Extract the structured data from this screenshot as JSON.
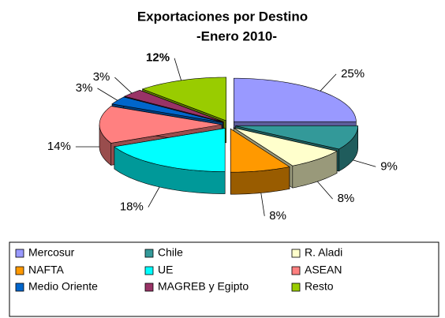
{
  "chart_data": {
    "type": "pie",
    "title": "Exportaciones por Destino",
    "subtitle": "-Enero 2010-",
    "categories": [
      "Mercosur",
      "Chile",
      "R. Aladi",
      "NAFTA",
      "UE",
      "ASEAN",
      "Medio Oriente",
      "MAGREB y Egipto",
      "Resto"
    ],
    "values": [
      25,
      9,
      8,
      8,
      18,
      14,
      3,
      3,
      12
    ],
    "value_labels": [
      "25%",
      "9%",
      "8%",
      "8%",
      "18%",
      "14%",
      "3%",
      "3%",
      "12%"
    ],
    "colors": [
      "#9999ff",
      "#339999",
      "#ffffcc",
      "#ff9900",
      "#00ffff",
      "#ff8080",
      "#0066cc",
      "#993366",
      "#99cc00"
    ],
    "legend": "bottom"
  }
}
